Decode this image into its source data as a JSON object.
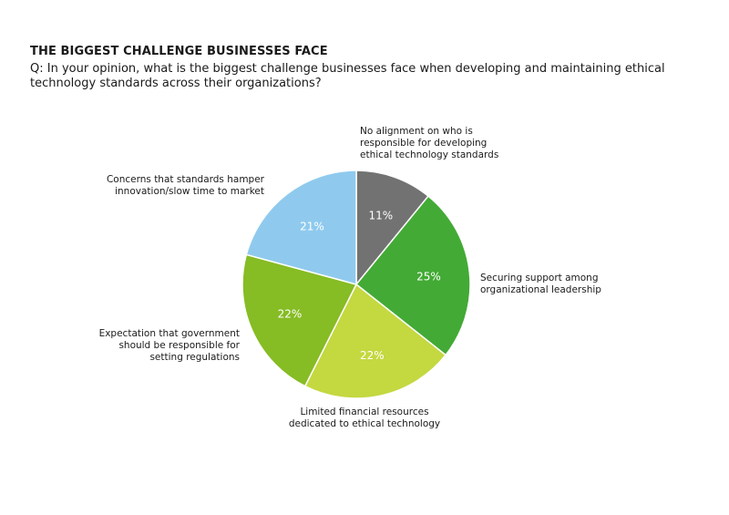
{
  "title": "THE BIGGEST CHALLENGE BUSINESSES FACE",
  "subtitle": "Q: In your opinion, what is the biggest challenge businesses face when developing and maintaining ethical technology standards across their organizations?",
  "chart_data": {
    "type": "pie",
    "title": "THE BIGGEST CHALLENGE BUSINESSES FACE",
    "slices": [
      {
        "label": "No alignment on who is responsible for developing ethical technology standards",
        "label_lines": [
          "No alignment on who is",
          "responsible for developing",
          "ethical technology standards"
        ],
        "value": 11,
        "value_label": "11%",
        "color": "#727272"
      },
      {
        "label": "Securing support among organizational leadership",
        "label_lines": [
          "Securing support among",
          "organizational leadership"
        ],
        "value": 25,
        "value_label": "25%",
        "color": "#43aa35"
      },
      {
        "label": "Limited financial resources dedicated to ethical technology",
        "label_lines": [
          "Limited financial resources",
          "dedicated to ethical technology"
        ],
        "value": 22,
        "value_label": "22%",
        "color": "#c4d840"
      },
      {
        "label": "Expectation that government should be responsible for setting regulations",
        "label_lines": [
          "Expectation that government",
          "should be responsible for",
          "setting regulations"
        ],
        "value": 22,
        "value_label": "22%",
        "color": "#86bc24"
      },
      {
        "label": "Concerns that standards hamper innovation/slow time to market",
        "label_lines": [
          "Concerns that standards hamper",
          "innovation/slow time to market"
        ],
        "value": 21,
        "value_label": "21%",
        "color": "#8fcaee"
      }
    ]
  }
}
